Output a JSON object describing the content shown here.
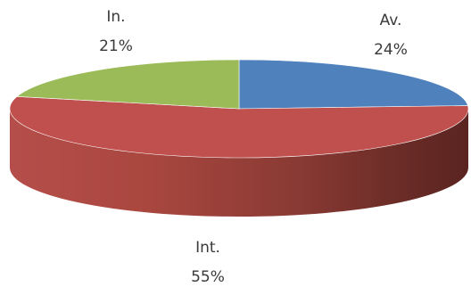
{
  "chart_data": {
    "type": "pie",
    "style": "3d",
    "slices": [
      {
        "category": "Av.",
        "percent_label": "24%",
        "value": 24,
        "color": "#4f81bd"
      },
      {
        "category": "Int.",
        "percent_label": "55%",
        "value": 55,
        "color": "#c0504d"
      },
      {
        "category": "In.",
        "percent_label": "21%",
        "value": 21,
        "color": "#9bbb59"
      }
    ]
  }
}
